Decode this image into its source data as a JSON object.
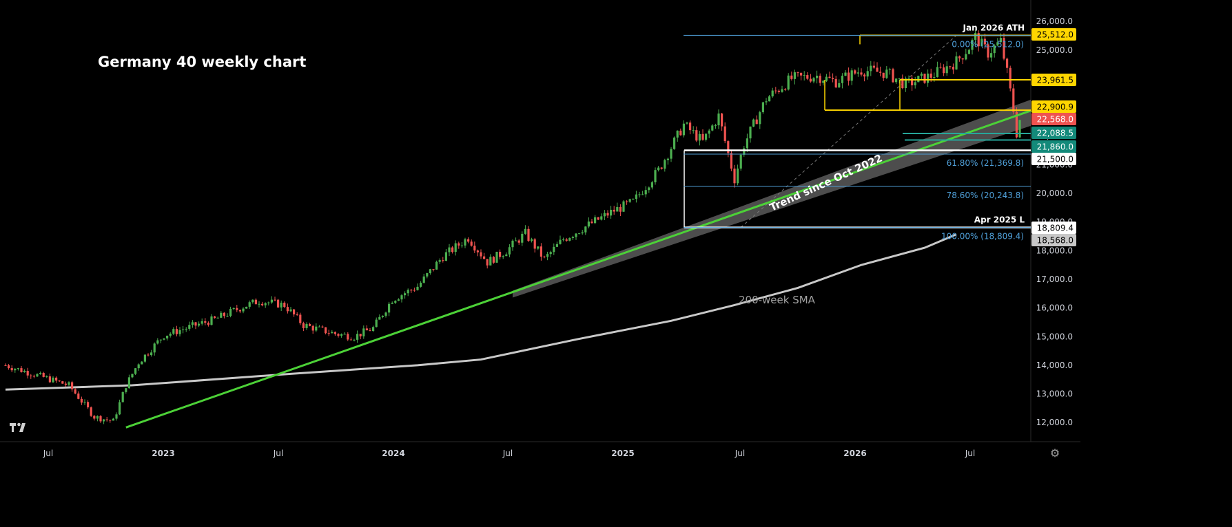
{
  "title": "Germany 40 weekly chart",
  "chart_data": {
    "type": "candlestick",
    "title": "Germany 40 weekly chart",
    "y_range": [
      11500,
      26400
    ],
    "y_ticks": [
      12000,
      13000,
      14000,
      15000,
      16000,
      17000,
      18000,
      19000,
      20000,
      21000,
      22000,
      23000,
      24000,
      25000,
      26000
    ],
    "x_axis_labels": [
      "Jul",
      "2023",
      "Jul",
      "2024",
      "Jul",
      "2025",
      "Jul",
      "2026",
      "Jul"
    ],
    "price_key": [
      [
        0,
        14000
      ],
      [
        20,
        13300
      ],
      [
        28,
        12200
      ],
      [
        34,
        12050
      ],
      [
        38,
        13300
      ],
      [
        42,
        14100
      ],
      [
        50,
        15050
      ],
      [
        60,
        15400
      ],
      [
        66,
        15600
      ],
      [
        75,
        16050
      ],
      [
        80,
        16250
      ],
      [
        88,
        16100
      ],
      [
        94,
        15400
      ],
      [
        104,
        15100
      ],
      [
        110,
        15000
      ],
      [
        116,
        15300
      ],
      [
        122,
        16300
      ],
      [
        130,
        16750
      ],
      [
        138,
        17800
      ],
      [
        146,
        18450
      ],
      [
        152,
        17600
      ],
      [
        158,
        18000
      ],
      [
        164,
        18600
      ],
      [
        170,
        17700
      ],
      [
        176,
        18400
      ],
      [
        184,
        18900
      ],
      [
        192,
        19400
      ],
      [
        198,
        19700
      ],
      [
        206,
        20800
      ],
      [
        214,
        22400
      ],
      [
        220,
        21800
      ],
      [
        225,
        22700
      ],
      [
        230,
        20500
      ],
      [
        233,
        21700
      ],
      [
        240,
        23300
      ],
      [
        248,
        24000
      ],
      [
        256,
        24100
      ],
      [
        262,
        23900
      ],
      [
        270,
        24300
      ],
      [
        278,
        24200
      ],
      [
        284,
        23800
      ],
      [
        292,
        24100
      ],
      [
        300,
        24600
      ],
      [
        304,
        25100
      ],
      [
        306,
        25450
      ],
      [
        310,
        24900
      ],
      [
        314,
        25300
      ],
      [
        316,
        24200
      ],
      [
        318,
        22900
      ],
      [
        319,
        22100
      ],
      [
        320,
        22568
      ]
    ],
    "right_labels": [
      {
        "value": "25,512.0",
        "style": "yellow"
      },
      {
        "value": "23,961.5",
        "style": "yellow"
      },
      {
        "value": "22,900.9",
        "style": "yellow"
      },
      {
        "value": "22,568.0",
        "style": "red"
      },
      {
        "value": "22,088.5",
        "style": "teal"
      },
      {
        "value": "21,860.0",
        "style": "teal"
      },
      {
        "value": "21,500.0",
        "style": "white"
      },
      {
        "value": "18,809.4",
        "style": "white"
      },
      {
        "value": "18,568.0",
        "style": "gray"
      }
    ],
    "horizontal_levels": [
      {
        "price": 25512.0,
        "color": "#ffd600",
        "name": "Jan 2026 ATH"
      },
      {
        "price": 23961.5,
        "color": "#ffd600"
      },
      {
        "price": 22900.9,
        "color": "#ffd600"
      },
      {
        "price": 22088.5,
        "color": "#26a69a"
      },
      {
        "price": 21860.0,
        "color": "#26a69a"
      },
      {
        "price": 21500.0,
        "color": "#ffffff"
      },
      {
        "price": 18809.4,
        "color": "#ffffff",
        "name": "Apr 2025 L"
      }
    ],
    "fibonacci": [
      {
        "label": "0.00% (25,512.0)",
        "price": 25512.0
      },
      {
        "label": "61.80% (21,369.8)",
        "price": 21369.8
      },
      {
        "label": "78.60% (20,243.8)",
        "price": 20243.8
      },
      {
        "label": "100.00% (18,809.4)",
        "price": 18809.4
      }
    ],
    "annotations": {
      "ath": "Jan 2026 ATH",
      "apr_low": "Apr 2025 L",
      "trend": "Trend since Oct 2022",
      "sma": "200-week SMA"
    },
    "sma_200": [
      [
        0,
        13150
      ],
      [
        40,
        13300
      ],
      [
        90,
        13700
      ],
      [
        130,
        14000
      ],
      [
        150,
        14200
      ],
      [
        180,
        14900
      ],
      [
        210,
        15550
      ],
      [
        230,
        16100
      ],
      [
        250,
        16700
      ],
      [
        270,
        17500
      ],
      [
        290,
        18100
      ],
      [
        300,
        18568
      ]
    ],
    "trend_line": {
      "start": [
        38,
        11830
      ],
      "end": [
        320,
        22750
      ]
    },
    "colors": {
      "up": "#4caf50",
      "down": "#ef5350",
      "sma": "#c8c8c8",
      "trend": "#4cd137",
      "channel": "#5a5a5a",
      "fib": "#4f9fd8",
      "yellow": "#ffd600"
    }
  }
}
